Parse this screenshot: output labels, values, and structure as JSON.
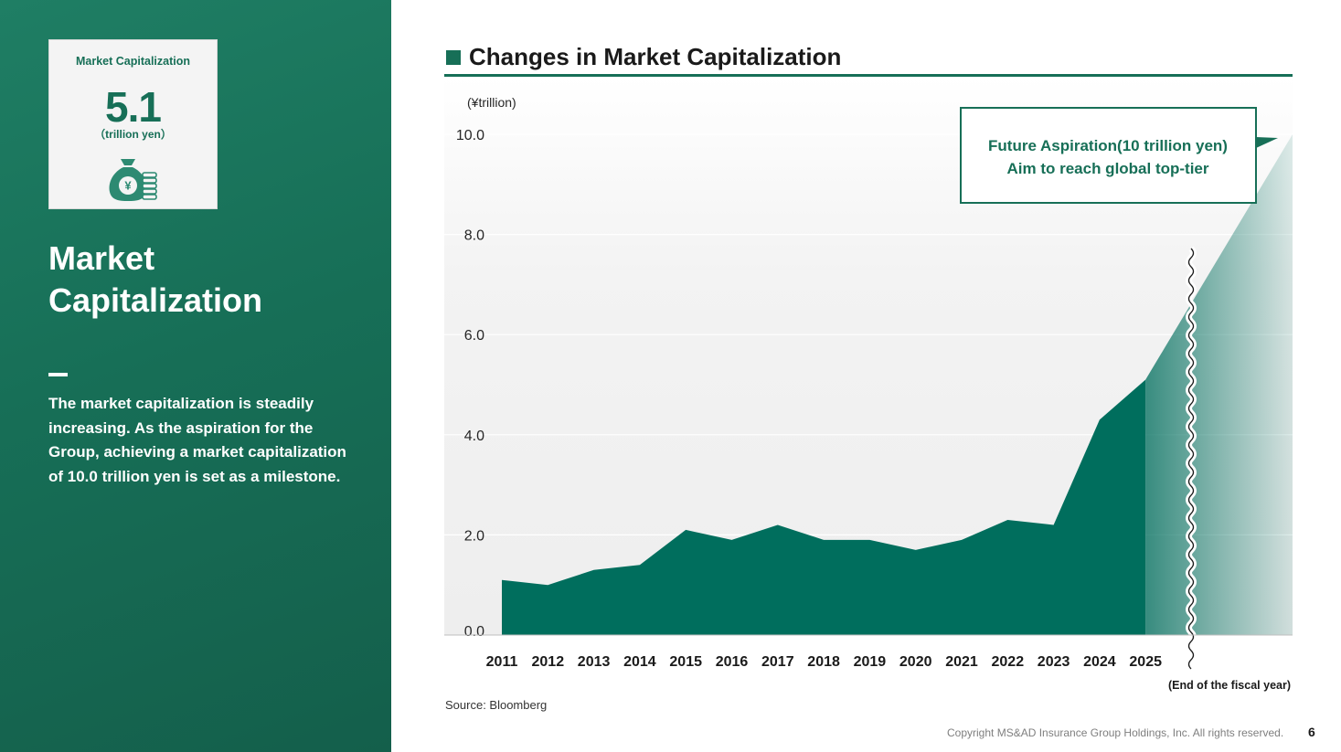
{
  "kpi": {
    "label": "Market Capitalization",
    "value": "5.1",
    "unit": "（trillion yen）",
    "icon": "money-bag-yen-coins-icon"
  },
  "left_panel": {
    "title": "Market Capitalization",
    "description": "The market capitalization is steadily increasing.  As the aspiration for the Group, achieving a market capitalization of 10.0 trillion yen is set as a milestone."
  },
  "chart_title": "Changes in Market Capitalization",
  "chart_data": {
    "type": "area",
    "title": "Changes in Market Capitalization",
    "ylabel": "(¥trillion)",
    "xlabel": "(End of the fiscal year)",
    "ylim": [
      0,
      10
    ],
    "yticks": [
      "0.0",
      "2.0",
      "4.0",
      "6.0",
      "8.0",
      "10.0"
    ],
    "ytick_values": [
      0,
      2,
      4,
      6,
      8,
      10
    ],
    "grid": true,
    "categories": [
      "2011",
      "2012",
      "2013",
      "2014",
      "2015",
      "2016",
      "2017",
      "2018",
      "2019",
      "2020",
      "2021",
      "2022",
      "2023",
      "2024",
      "2025"
    ],
    "values": [
      1.1,
      1.0,
      1.3,
      1.4,
      2.1,
      1.9,
      2.2,
      1.9,
      1.9,
      1.7,
      1.9,
      2.3,
      2.2,
      4.3,
      5.1
    ],
    "target_value": 10.0,
    "annotation": {
      "line1": "Future Aspiration(10 trillion yen)",
      "line2": "Aim to reach global top-tier"
    },
    "colors": {
      "area": "#006e5d",
      "accent": "#176f57",
      "plot_bg": "#f2f2f2"
    }
  },
  "footer": {
    "source": "Source: Bloomberg",
    "copyright": "Copyright MS&AD Insurance Group Holdings, Inc. All rights reserved.",
    "page_number": "6"
  }
}
